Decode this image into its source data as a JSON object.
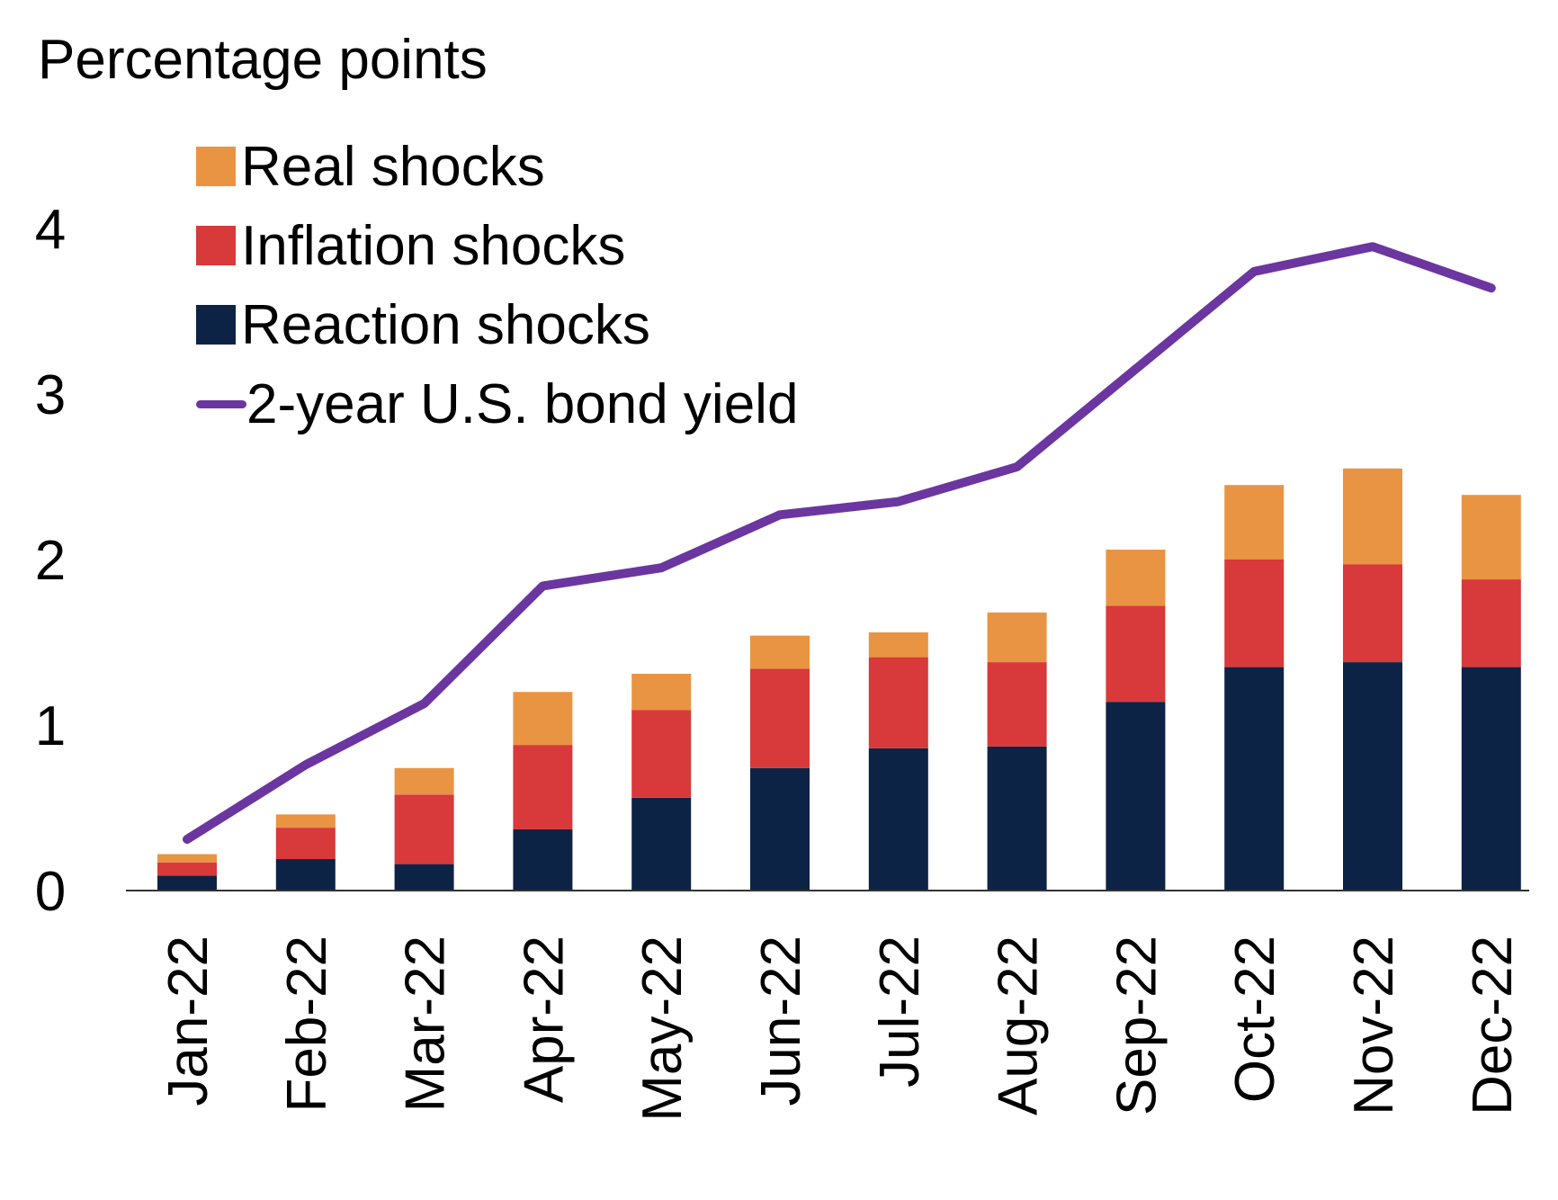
{
  "chart_data": {
    "type": "bar",
    "stacked": true,
    "ylabel": "Percentage points",
    "ylim": [
      0,
      4.3
    ],
    "yticks": [
      0,
      1,
      2,
      3,
      4
    ],
    "categories": [
      "Jan-22",
      "Feb-22",
      "Mar-22",
      "Apr-22",
      "May-22",
      "Jun-22",
      "Jul-22",
      "Aug-22",
      "Sep-22",
      "Oct-22",
      "Nov-22",
      "Dec-22"
    ],
    "series": [
      {
        "name": "Reaction shocks",
        "type": "bar",
        "color": "#0d2346",
        "values": [
          0.09,
          0.19,
          0.16,
          0.37,
          0.56,
          0.74,
          0.86,
          0.87,
          1.14,
          1.35,
          1.38,
          1.35
        ]
      },
      {
        "name": "Inflation shocks",
        "type": "bar",
        "color": "#d8393a",
        "values": [
          0.08,
          0.19,
          0.42,
          0.51,
          0.53,
          0.6,
          0.55,
          0.51,
          0.58,
          0.65,
          0.59,
          0.53
        ]
      },
      {
        "name": "Real shocks",
        "type": "bar",
        "color": "#e99443",
        "values": [
          0.05,
          0.08,
          0.16,
          0.32,
          0.22,
          0.2,
          0.15,
          0.3,
          0.34,
          0.45,
          0.58,
          0.51
        ]
      },
      {
        "name": "2-year U.S. bond yield",
        "type": "line",
        "color": "#6b36a0",
        "values": [
          0.31,
          0.76,
          1.13,
          1.84,
          1.95,
          2.27,
          2.35,
          2.56,
          3.15,
          3.74,
          3.89,
          3.64
        ]
      }
    ],
    "legend_order": [
      "Real shocks",
      "Inflation shocks",
      "Reaction shocks",
      "2-year U.S. bond yield"
    ],
    "legend_position": "top-left"
  }
}
